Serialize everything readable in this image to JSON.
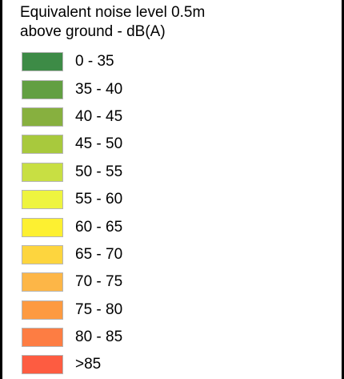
{
  "legend": {
    "title_line1": "Equivalent noise level 0.5m",
    "title_line2": "above ground - dB(A)",
    "items": [
      {
        "label": "0 - 35",
        "color": "#3d8b46"
      },
      {
        "label": "35 - 40",
        "color": "#629f42"
      },
      {
        "label": "40 - 45",
        "color": "#87b03f"
      },
      {
        "label": "45 - 50",
        "color": "#a8c93d"
      },
      {
        "label": "50 - 55",
        "color": "#c8df43"
      },
      {
        "label": "55 - 60",
        "color": "#eef43f"
      },
      {
        "label": "60 - 65",
        "color": "#fdf031"
      },
      {
        "label": "65 - 70",
        "color": "#fdd53e"
      },
      {
        "label": "70 - 75",
        "color": "#fdb647"
      },
      {
        "label": "75 - 80",
        "color": "#fd9a41"
      },
      {
        "label": "80 - 85",
        "color": "#fd7d43"
      },
      {
        "label": ">85",
        "color": "#fd5c41"
      }
    ]
  }
}
